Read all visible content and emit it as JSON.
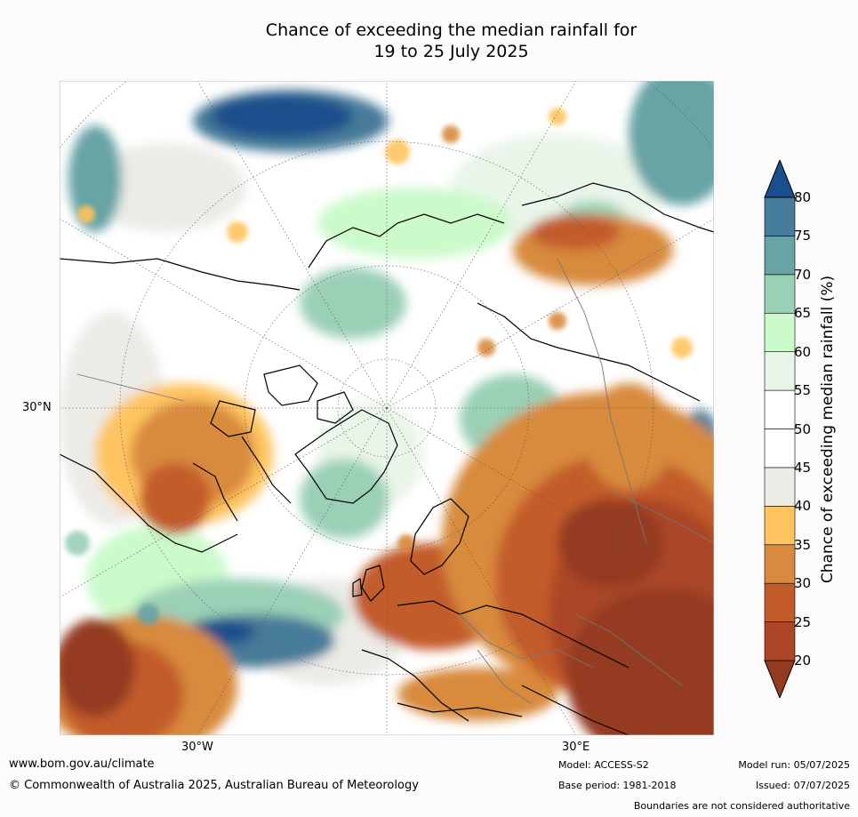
{
  "title": {
    "line1": "Chance of exceeding the median rainfall for",
    "line2": "19 to 25 July 2025"
  },
  "axis_labels": {
    "lat": "30°N",
    "lon_left": "30°W",
    "lon_right": "30°E"
  },
  "colorbar": {
    "title": "Chance of exceeding median rainfall (%)",
    "ticks": [
      "20",
      "25",
      "30",
      "35",
      "40",
      "45",
      "50",
      "55",
      "60",
      "65",
      "70",
      "75",
      "80"
    ],
    "colors": [
      "#943a21",
      "#ab4626",
      "#c25b29",
      "#d88a3e",
      "#fec460",
      "#ecebe6",
      "#ffffff",
      "#ffffff",
      "#e9f5e9",
      "#cbfacb",
      "#9ad0b6",
      "#68a3a5",
      "#467c99",
      "#1b4f8c"
    ]
  },
  "footer": {
    "url": "www.bom.gov.au/climate",
    "copyright": "© Commonwealth of Australia 2025, Australian Bureau of Meteorology",
    "model": "Model: ACCESS-S2",
    "base_period": "Base period: 1981-2018",
    "model_run": "Model run: 05/07/2025",
    "issued": "Issued: 07/07/2025",
    "disclaimer": "Boundaries are not considered authoritative"
  }
}
